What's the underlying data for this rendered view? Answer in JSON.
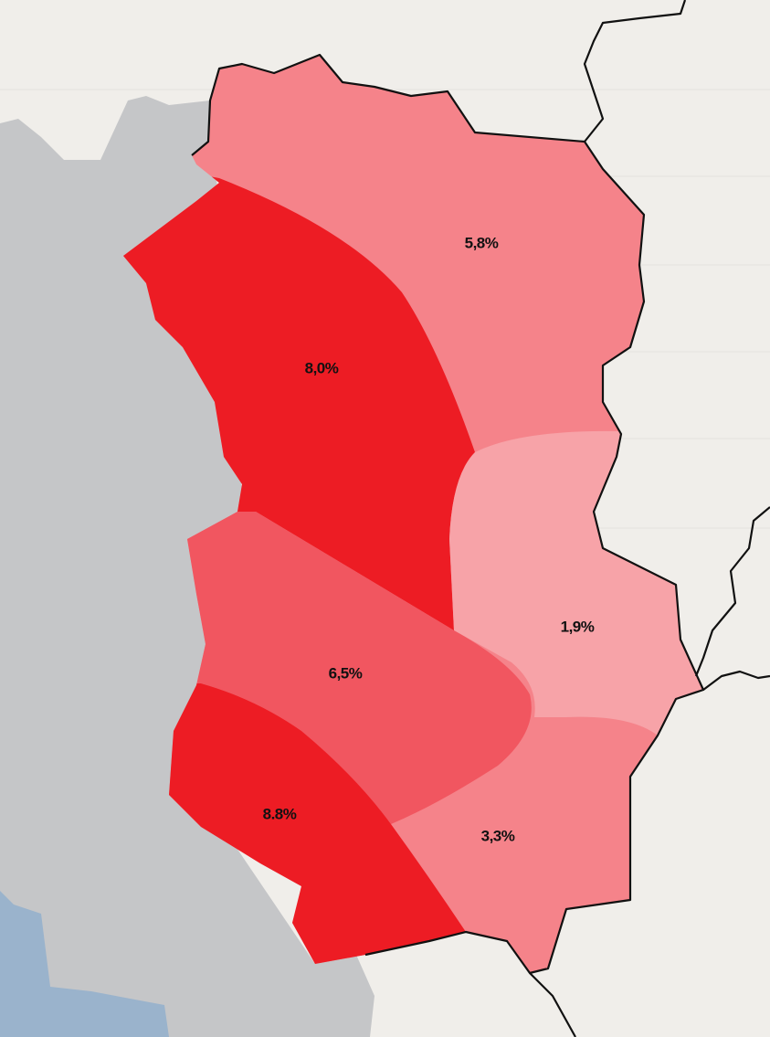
{
  "regions": [
    {
      "label": "5,8%"
    },
    {
      "label": "8,0%"
    },
    {
      "label": "1,9%"
    },
    {
      "label": "6,5%"
    },
    {
      "label": "8.8%"
    },
    {
      "label": "3,3%"
    }
  ]
}
